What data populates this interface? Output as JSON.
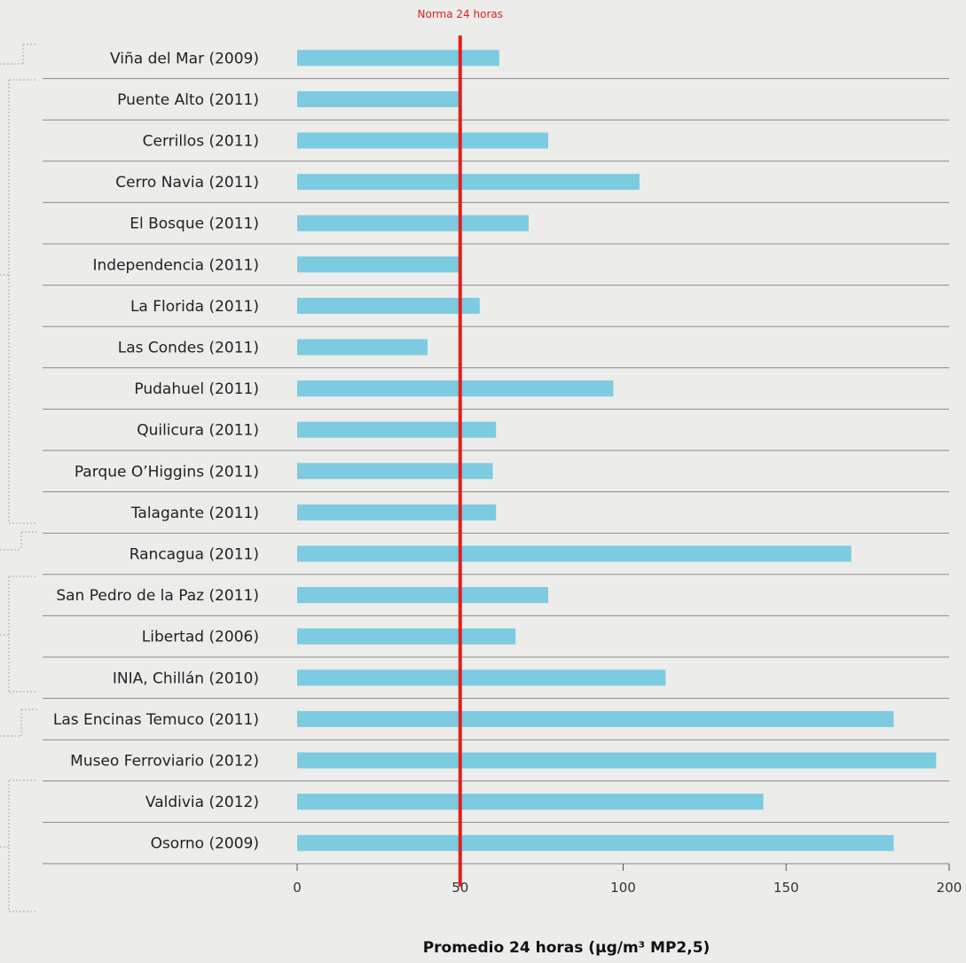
{
  "chart_data": {
    "type": "bar",
    "orientation": "horizontal",
    "categories": [
      "Viña del Mar (2009)",
      "Puente Alto (2011)",
      "Cerrillos (2011)",
      "Cerro Navia (2011)",
      "El Bosque  (2011)",
      "Independencia  (2011)",
      "La Florida (2011)",
      "Las Condes (2011)",
      "Pudahuel (2011)",
      "Quilicura (2011)",
      "Parque O’Higgins (2011)",
      "Talagante (2011)",
      "Rancagua (2011)",
      "San Pedro de la Paz (2011)",
      "Libertad (2006)",
      "INIA, Chillán (2010)",
      "Las Encinas Temuco (2011)",
      "Museo Ferroviario (2012)",
      "Valdivia (2012)",
      "Osorno (2009)"
    ],
    "values": [
      62,
      50,
      77,
      105,
      71,
      50,
      56,
      40,
      97,
      61,
      60,
      61,
      170,
      77,
      67,
      113,
      183,
      196,
      143,
      183
    ],
    "xlabel": "Promedio 24 horas (µg/m³ MP2,5)",
    "xlim": [
      0,
      200
    ],
    "xticks": [
      0,
      50,
      100,
      150,
      200
    ],
    "reference_line": {
      "value": 50,
      "label": "Norma 24 horas",
      "color": "#e02020"
    },
    "bar_color": "#7ccbe0",
    "separator_color": "#8a8a8a",
    "background": "#ececea"
  }
}
